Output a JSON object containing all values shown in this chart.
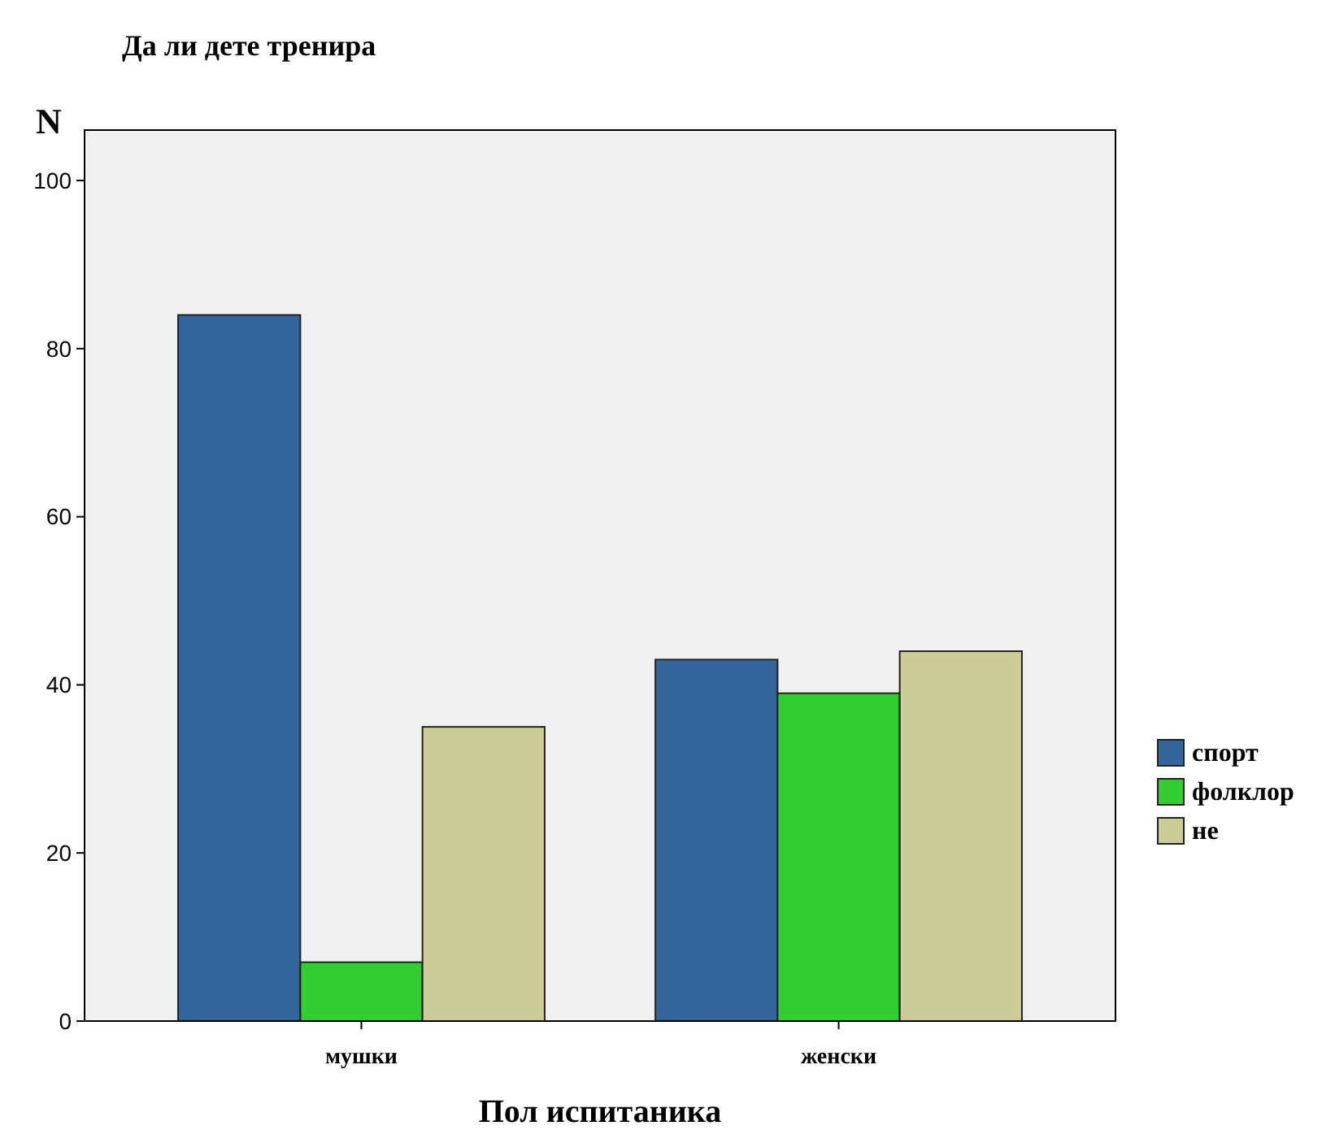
{
  "chart_data": {
    "type": "bar",
    "title": "Да ли дете тренира",
    "xlabel": "Пол испитаника",
    "ylabel": "N",
    "categories": [
      "мушки",
      "женски"
    ],
    "series": [
      {
        "name": "спорт",
        "color": "#34659a",
        "values": [
          84,
          43
        ]
      },
      {
        "name": "фолклор",
        "color": "#33cc33",
        "values": [
          7,
          39
        ]
      },
      {
        "name": "не",
        "color": "#cccc99",
        "values": [
          35,
          44
        ]
      }
    ],
    "ylim": [
      0,
      106
    ],
    "yticks": [
      0,
      20,
      40,
      60,
      80,
      100
    ],
    "grid": false,
    "legend": "right"
  }
}
